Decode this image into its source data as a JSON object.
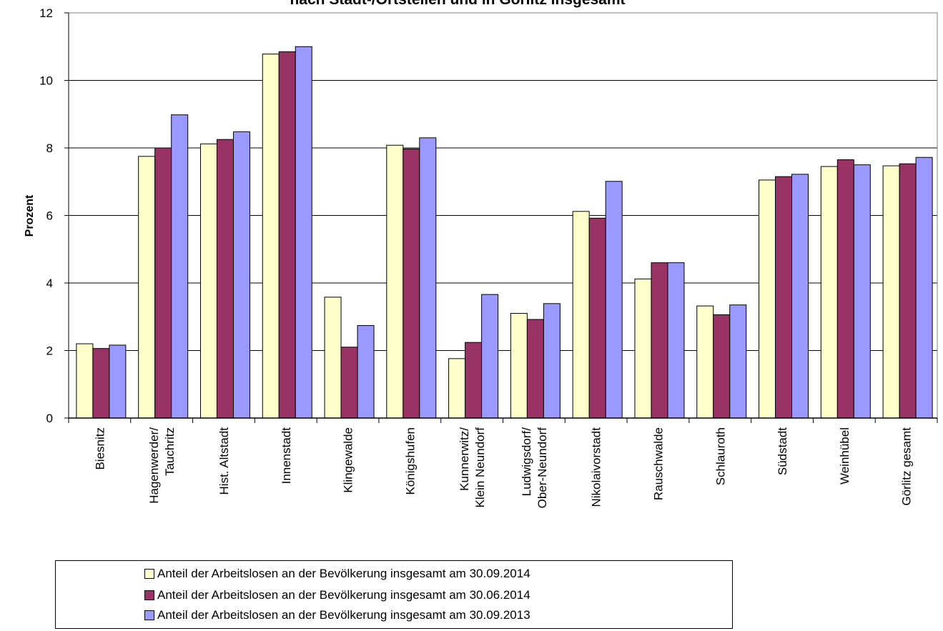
{
  "chart_data": {
    "type": "bar",
    "title": "nach Stadt-/Ortsteilen und in Görlitz insgesamt",
    "xlabel": "",
    "ylabel": "Prozent",
    "ylim": [
      0,
      12
    ],
    "yticks": [
      "0",
      "2",
      "4",
      "6",
      "8",
      "10",
      "12"
    ],
    "grid": true,
    "legend_position": "bottom",
    "categories": [
      [
        "Biesnitz"
      ],
      [
        "Hagenwerder/",
        "Tauchritz"
      ],
      [
        "Hist. Altstadt"
      ],
      [
        "Innenstadt"
      ],
      [
        "Klingewalde"
      ],
      [
        "Königshufen"
      ],
      [
        "Kunnerwitz/",
        "Klein Neundorf"
      ],
      [
        "Ludwigsdorf/",
        "Ober-Neundorf"
      ],
      [
        "Nikolaivorstadt"
      ],
      [
        "Rauschwalde"
      ],
      [
        "Schlauroth"
      ],
      [
        "Südstadt"
      ],
      [
        "Weinhübel"
      ],
      [
        "Görlitz gesamt"
      ]
    ],
    "series": [
      {
        "name": "Anteil der Arbeitslosen an der Bevölkerung insgesamt am 30.09.2014",
        "color": "#FFFFCC",
        "values": [
          2.2,
          7.75,
          8.12,
          10.78,
          3.58,
          8.08,
          1.76,
          3.1,
          6.12,
          4.12,
          3.32,
          7.05,
          7.45,
          7.47
        ]
      },
      {
        "name": "Anteil der Arbeitslosen an der Bevölkerung insgesamt am 30.06.2014",
        "color": "#993366",
        "values": [
          2.06,
          8.0,
          8.25,
          10.85,
          2.1,
          7.97,
          2.24,
          2.92,
          5.92,
          4.6,
          3.06,
          7.15,
          7.65,
          7.53
        ]
      },
      {
        "name": "Anteil der Arbeitslosen an der Bevölkerung insgesamt am 30.09.2013",
        "color": "#9999FF",
        "values": [
          2.16,
          8.98,
          8.48,
          11.0,
          2.74,
          8.3,
          3.66,
          3.39,
          7.01,
          4.6,
          3.35,
          7.22,
          7.5,
          7.72
        ]
      }
    ]
  }
}
